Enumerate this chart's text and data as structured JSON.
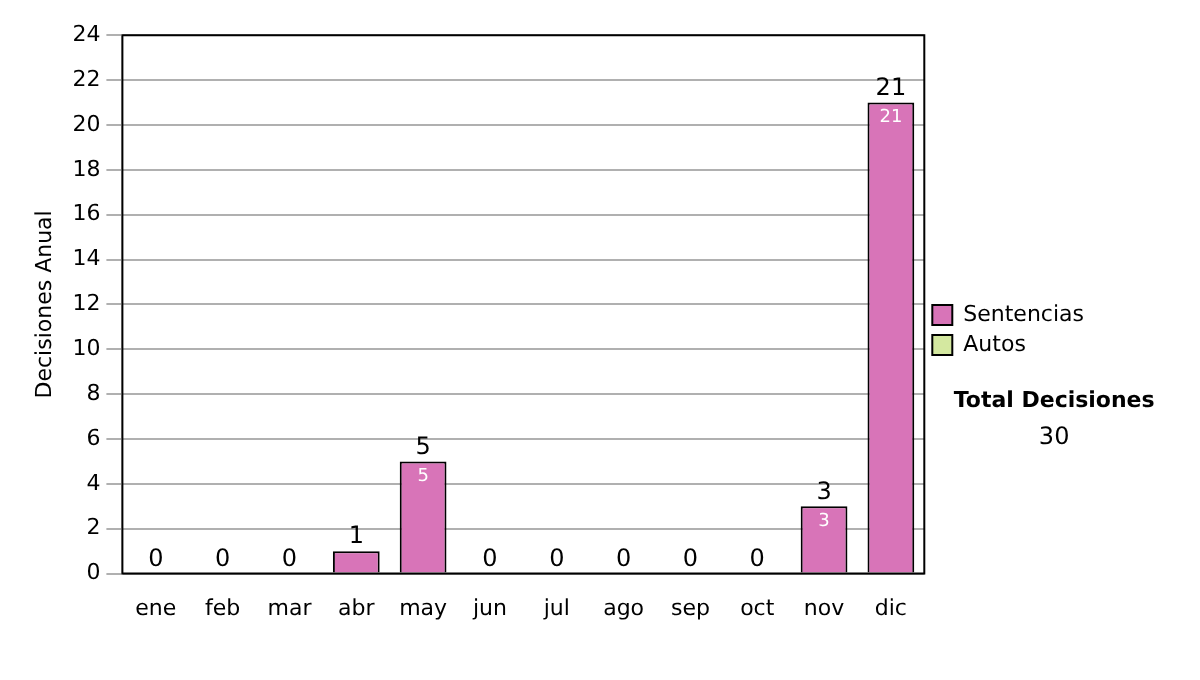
{
  "chart_data": {
    "type": "bar",
    "ylabel": "Decisiones Anual",
    "categories": [
      "ene",
      "feb",
      "mar",
      "abr",
      "may",
      "jun",
      "jul",
      "ago",
      "sep",
      "oct",
      "nov",
      "dic"
    ],
    "series": [
      {
        "name": "Sentencias",
        "color": "#d874b8",
        "values": [
          0,
          0,
          0,
          1,
          5,
          0,
          0,
          0,
          0,
          0,
          3,
          21
        ],
        "value_labels": [
          null,
          null,
          null,
          null,
          "5",
          null,
          null,
          null,
          null,
          null,
          "3",
          "21"
        ]
      },
      {
        "name": "Autos",
        "color": "#d4e8a0",
        "values": [
          0,
          0,
          0,
          0,
          0,
          0,
          0,
          0,
          0,
          0,
          0,
          0
        ]
      }
    ],
    "stacked": true,
    "totals": [
      "0",
      "0",
      "0",
      "1",
      "5",
      "0",
      "0",
      "0",
      "0",
      "0",
      "3",
      "21"
    ],
    "ylim": [
      0,
      24
    ],
    "yticks": [
      0,
      2,
      4,
      6,
      8,
      10,
      12,
      14,
      16,
      18,
      20,
      22,
      24
    ],
    "grid": "y",
    "legend": "right",
    "annotations": [
      "Total Decisiones",
      "30"
    ]
  }
}
